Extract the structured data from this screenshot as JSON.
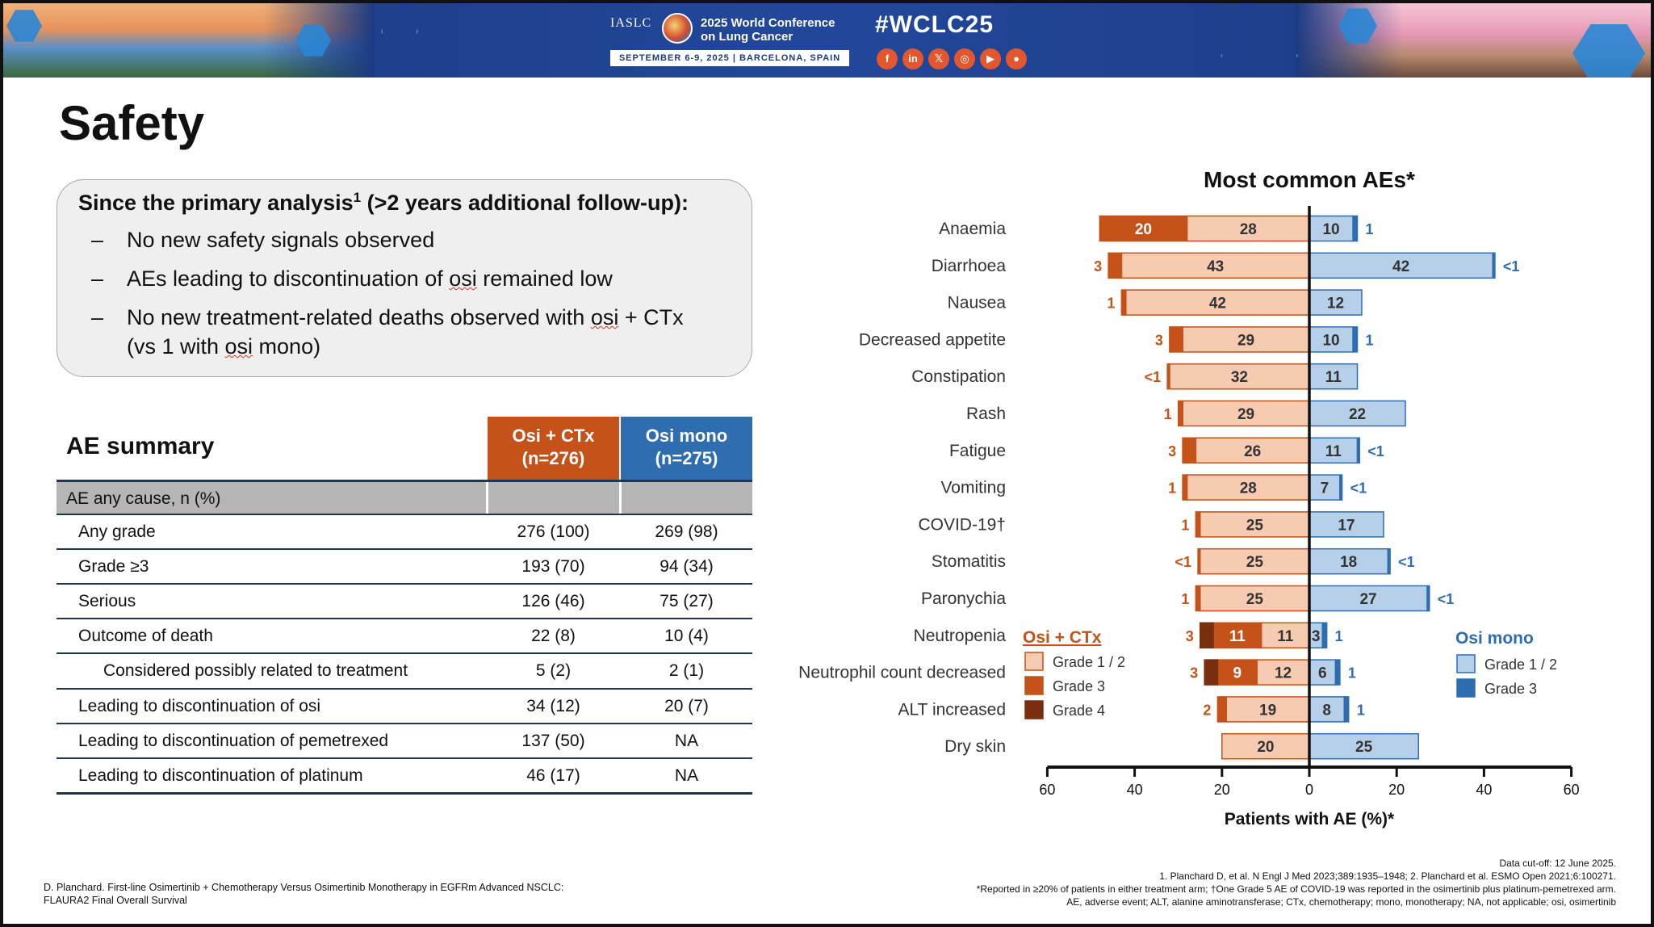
{
  "banner": {
    "org": "IASLC",
    "conference_name_line1": "2025 World Conference",
    "conference_name_line2": "on Lung Cancer",
    "dates_location": "SEPTEMBER 6-9, 2025  |  BARCELONA, SPAIN",
    "hashtag": "#WCLC25",
    "social_icons": [
      {
        "name": "facebook-icon",
        "glyph": "f"
      },
      {
        "name": "linkedin-icon",
        "glyph": "in"
      },
      {
        "name": "x-icon",
        "glyph": "𝕏"
      },
      {
        "name": "instagram-icon",
        "glyph": "◎"
      },
      {
        "name": "youtube-icon",
        "glyph": "▶"
      },
      {
        "name": "wechat-icon",
        "glyph": "●"
      }
    ]
  },
  "title": "Safety",
  "callout": {
    "heading_main": "Since the primary analysis",
    "heading_sup": "1",
    "heading_rest": " (>2 years additional follow-up):",
    "bullets": [
      {
        "before": "No new safety signals observed",
        "wavy": "",
        "after": ""
      },
      {
        "before": "AEs leading to discontinuation of ",
        "wavy": "osi",
        "after": " remained low"
      },
      {
        "before": "No new treatment-related deaths observed with ",
        "wavy": "osi",
        "after": " + CTx"
      },
      {
        "before": "(vs 1 with ",
        "wavy": "osi",
        "after": " mono)"
      }
    ],
    "dash": "–"
  },
  "ae_table": {
    "title": "AE summary",
    "col1_line1": "Osi + CTx",
    "col1_line2": "(n=276)",
    "col2_line1": "Osi mono",
    "col2_line2": "(n=275)",
    "section_label": "AE any cause, n (%)",
    "rows": [
      {
        "label": "Any grade",
        "osi_ctx": "276 (100)",
        "osi_mono": "269 (98)",
        "indent": false
      },
      {
        "label": "Grade ≥3",
        "osi_ctx": "193 (70)",
        "osi_mono": "94 (34)",
        "indent": false
      },
      {
        "label": "Serious",
        "osi_ctx": "126 (46)",
        "osi_mono": "75 (27)",
        "indent": false
      },
      {
        "label": "Outcome of death",
        "osi_ctx": "22 (8)",
        "osi_mono": "10 (4)",
        "indent": false
      },
      {
        "label": "Considered possibly related to treatment",
        "osi_ctx": "5 (2)",
        "osi_mono": "2 (1)",
        "indent": true
      },
      {
        "label": "Leading to discontinuation of osi",
        "osi_ctx": "34 (12)",
        "osi_mono": "20 (7)",
        "indent": false
      },
      {
        "label": "Leading to discontinuation of pemetrexed",
        "osi_ctx": "137 (50)",
        "osi_mono": "NA",
        "indent": false
      },
      {
        "label": "Leading to discontinuation of platinum",
        "osi_ctx": "46 (17)",
        "osi_mono": "NA",
        "indent": false
      }
    ]
  },
  "chart_data": {
    "type": "bar",
    "orientation": "horizontal-butterfly",
    "title": "Most common AEs*",
    "xlabel": "Patients with AE (%)*",
    "xlim": [
      -60,
      60
    ],
    "xticks": [
      -60,
      -40,
      -20,
      0,
      20,
      40,
      60
    ],
    "xtick_labels": [
      "60",
      "40",
      "20",
      "0",
      "20",
      "40",
      "60"
    ],
    "categories": [
      "Anaemia",
      "Diarrhoea",
      "Nausea",
      "Decreased appetite",
      "Constipation",
      "Rash",
      "Fatigue",
      "Vomiting",
      "COVID-19†",
      "Stomatitis",
      "Paronychia",
      "Neutropenia",
      "Neutrophil count decreased",
      "ALT increased",
      "Dry skin"
    ],
    "left_group": {
      "name": "Osi + CTx",
      "series": [
        {
          "name": "Grade 1 / 2",
          "color": "#f6cbb2",
          "values": [
            28,
            43,
            42,
            29,
            32,
            29,
            26,
            28,
            25,
            25,
            25,
            11,
            12,
            19,
            20
          ]
        },
        {
          "name": "Grade 3",
          "color": "#c45219",
          "values": [
            20,
            3,
            1,
            3,
            0.5,
            1,
            3,
            1,
            1,
            0.5,
            1,
            11,
            9,
            2,
            0
          ]
        },
        {
          "name": "Grade 4",
          "color": "#7a2e10",
          "values": [
            0,
            0,
            0,
            0,
            0,
            0,
            0,
            0,
            0,
            0,
            0,
            3,
            3,
            0,
            0
          ]
        }
      ],
      "labels_grade12": [
        "28",
        "43",
        "42",
        "29",
        "32",
        "29",
        "26",
        "28",
        "25",
        "25",
        "25",
        "11",
        "12",
        "19",
        "20"
      ],
      "labels_grade3_inside": [
        "20",
        "",
        "",
        "",
        "",
        "",
        "",
        "",
        "",
        "",
        "",
        "11",
        "9",
        "",
        ""
      ],
      "labels_outside": [
        "",
        "3",
        "1",
        "3",
        "<1",
        "1",
        "3",
        "1",
        "1",
        "<1",
        "1",
        "3",
        "3",
        "2",
        ""
      ]
    },
    "right_group": {
      "name": "Osi mono",
      "series": [
        {
          "name": "Grade 1 / 2",
          "color": "#b7d0ea",
          "values": [
            10,
            42,
            12,
            10,
            11,
            22,
            11,
            7,
            17,
            18,
            27,
            3,
            6,
            8,
            25
          ]
        },
        {
          "name": "Grade 3",
          "color": "#2e6db0",
          "values": [
            1,
            0.5,
            0,
            1,
            0,
            0,
            0.5,
            0.5,
            0,
            0.5,
            0.5,
            1,
            1,
            1,
            0
          ]
        }
      ],
      "labels_grade12": [
        "10",
        "42",
        "12",
        "10",
        "11",
        "22",
        "11",
        "7",
        "17",
        "18",
        "27",
        "3",
        "6",
        "8",
        "25"
      ],
      "labels_outside": [
        "1",
        "<1",
        "",
        "1",
        "",
        "",
        "<1",
        "<1",
        "",
        "<1",
        "<1",
        "1",
        "1",
        "1",
        ""
      ]
    },
    "legend": {
      "left_title": "Osi + CTx",
      "left_items": [
        "Grade 1 / 2",
        "Grade 3",
        "Grade 4"
      ],
      "right_title": "Osi mono",
      "right_items": [
        "Grade 1 / 2",
        "Grade 3"
      ]
    }
  },
  "footer": {
    "left_line1": "D. Planchard. First-line Osimertinib + Chemotherapy Versus Osimertinib Monotherapy in EGFRm Advanced NSCLC:",
    "left_line2": "FLAURA2 Final Overall Survival",
    "right_line1": "Data cut-off: 12 June 2025.",
    "right_line2": "1. Planchard D, et al. N Engl J Med 2023;389:1935–1948; 2. Planchard et al. ESMO Open 2021;6:100271.",
    "right_line3": "*Reported in ≥20% of patients in either treatment arm; †One Grade 5 AE of COVID-19 was reported in the osimertinib plus platinum-pemetrexed arm.",
    "right_line4": "AE, adverse event; ALT, alanine aminotransferase; CTx, chemotherapy; mono, monotherapy; NA, not applicable; osi, osimertinib"
  }
}
